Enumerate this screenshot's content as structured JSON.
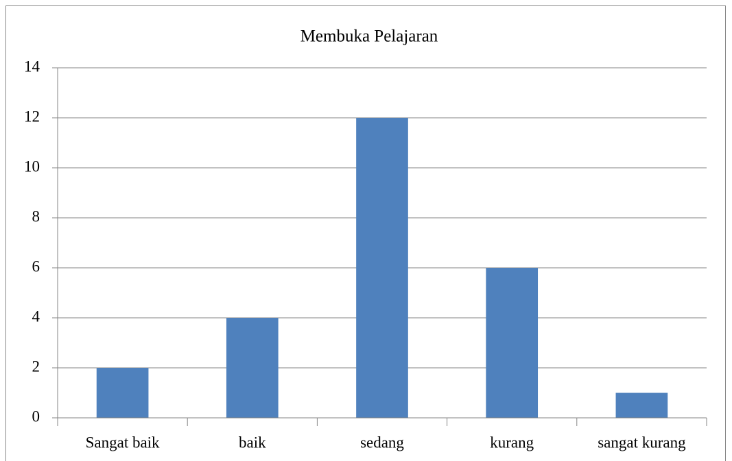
{
  "chart_data": {
    "type": "bar",
    "title": "Membuka Pelajaran",
    "categories": [
      "Sangat baik",
      "baik",
      "sedang",
      "kurang",
      "sangat kurang"
    ],
    "values": [
      2,
      4,
      12,
      6,
      1
    ],
    "color": "#4f81bd",
    "ylim": [
      0,
      14
    ],
    "yticks": [
      0,
      2,
      4,
      6,
      8,
      10,
      12,
      14
    ],
    "grid": true
  }
}
